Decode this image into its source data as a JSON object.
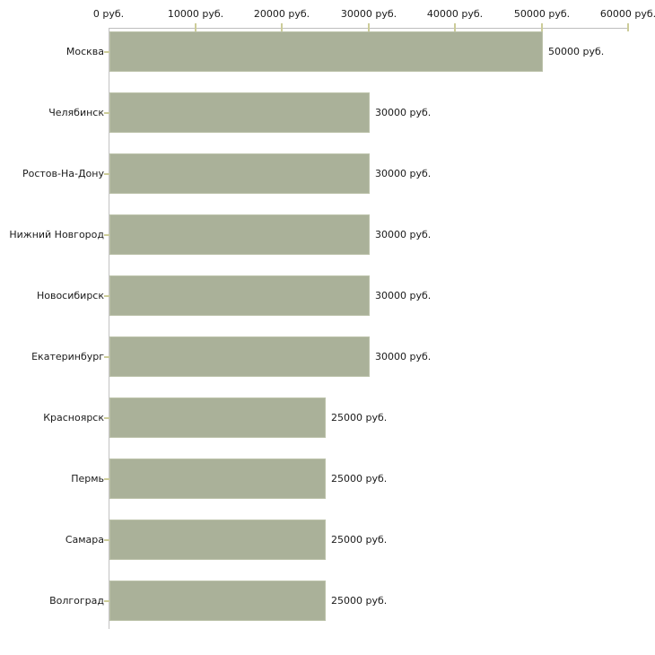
{
  "chart_data": {
    "type": "bar",
    "orientation": "horizontal",
    "title": "",
    "xlabel": "",
    "ylabel": "",
    "unit": "руб.",
    "categories": [
      "Москва",
      "Челябинск",
      "Ростов-На-Дону",
      "Нижний Новгород",
      "Новосибирск",
      "Екатеринбург",
      "Красноярск",
      "Пермь",
      "Самара",
      "Волгоград"
    ],
    "values": [
      50000,
      30000,
      30000,
      30000,
      30000,
      30000,
      25000,
      25000,
      25000,
      25000
    ],
    "value_labels": [
      "50000 руб.",
      "30000 руб.",
      "30000 руб.",
      "30000 руб.",
      "30000 руб.",
      "30000 руб.",
      "25000 руб.",
      "25000 руб.",
      "25000 руб.",
      "25000 руб."
    ],
    "x_ticks": [
      0,
      10000,
      20000,
      30000,
      40000,
      50000,
      60000
    ],
    "x_tick_labels": [
      "0 руб.",
      "10000 руб.",
      "20000 руб.",
      "30000 руб.",
      "40000 руб.",
      "50000 руб.",
      "60000 руб."
    ],
    "xlim": [
      0,
      60000
    ],
    "axis_position": "top",
    "grid": false,
    "legend": false,
    "colors": {
      "bar_fill": "#aab199",
      "bar_edge": "#bcc2aa",
      "axis_line": "#bdbdbd",
      "tick_mark": "#cccc99",
      "text": "#1a1a1a",
      "background": "#ffffff"
    }
  }
}
